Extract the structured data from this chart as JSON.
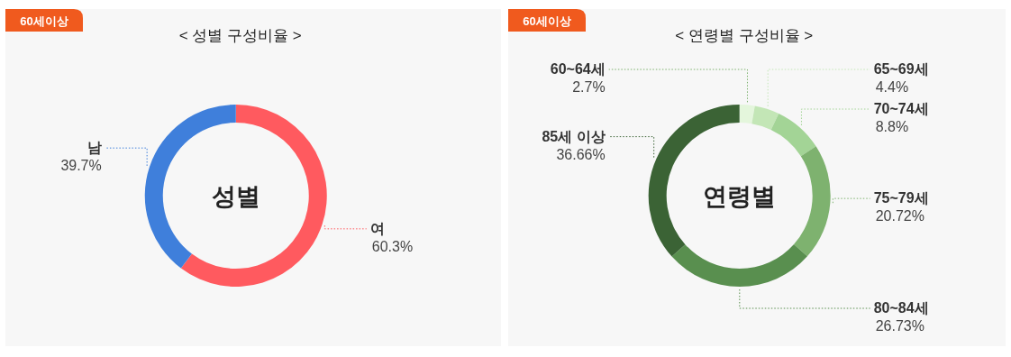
{
  "chart_data": [
    {
      "type": "donut",
      "subtitle": "60세이상",
      "title": "< 성별 구성비율 >",
      "annotations": [
        "성별"
      ],
      "categories": [
        "여",
        "남"
      ],
      "values": [
        60.3,
        39.7
      ],
      "value_labels": [
        "60.3%",
        "39.7%"
      ],
      "colors": [
        "#ff5a5f",
        "#3f7fdb"
      ]
    },
    {
      "type": "donut",
      "subtitle": "60세이상",
      "title": "< 연령별 구성비율 >",
      "annotations": [
        "연령별"
      ],
      "categories": [
        "60~64세",
        "65~69세",
        "70~74세",
        "75~79세",
        "80~84세",
        "85세 이상"
      ],
      "values": [
        2.7,
        4.4,
        8.8,
        20.72,
        26.73,
        36.66
      ],
      "value_labels": [
        "2.7%",
        "4.4%",
        "8.8%",
        "20.72%",
        "26.73%",
        "36.66%"
      ],
      "colors": [
        "#e4f6dc",
        "#c3e6b6",
        "#a3d496",
        "#7eb26f",
        "#598f4f",
        "#3b6335"
      ]
    }
  ]
}
